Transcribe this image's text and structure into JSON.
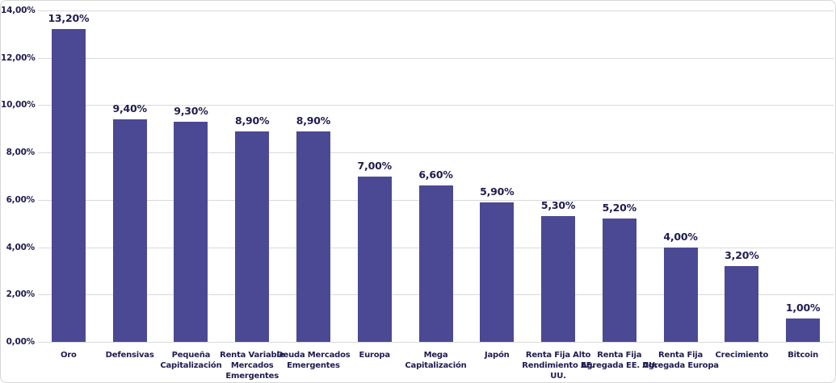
{
  "chart_data": {
    "type": "bar",
    "title": "",
    "xlabel": "",
    "ylabel": "",
    "ylim": [
      0,
      14
    ],
    "grid": true,
    "legend": false,
    "bar_color": "#4B4994",
    "label_color": "#1F1C4E",
    "gridline_color": "#D9D9D9",
    "background": "#FFFFFF",
    "categories": [
      "Oro",
      "Defensivas",
      "Pequeña Capitalización",
      "Renta Variable Mercados Emergentes",
      "Deuda Mercados Emergentes",
      "Europa",
      "Mega Capitalización",
      "Japón",
      "Renta Fija Alto Rendimiento EE. UU.",
      "Renta Fija Agregada EE. UU.",
      "Renta Fija Agregada Europa",
      "Crecimiento",
      "Bitcoin"
    ],
    "category_display": [
      "Oro",
      "Defensivas",
      "Pequeña\nCapitalización",
      "Renta Variable\nMercados\nEmergentes",
      "Deuda Mercados\nEmergentes",
      "Europa",
      "Mega\nCapitalización",
      "Japón",
      "Renta Fija Alto\nRendimiento EE.\nUU.",
      "Renta Fija\nAgregada EE. UU.",
      "Renta Fija\nAgregada Europa",
      "Crecimiento",
      "Bitcoin"
    ],
    "values": [
      13.2,
      9.4,
      9.3,
      8.9,
      8.9,
      7.0,
      6.6,
      5.9,
      5.3,
      5.2,
      4.0,
      3.2,
      1.0
    ],
    "value_labels": [
      "13,20%",
      "9,40%",
      "9,30%",
      "8,90%",
      "8,90%",
      "7,00%",
      "6,60%",
      "5,90%",
      "5,30%",
      "5,20%",
      "4,00%",
      "3,20%",
      "1,00%"
    ],
    "y_ticks": [
      {
        "value": 14,
        "label": "14,00%"
      },
      {
        "value": 12,
        "label": "12,00%"
      },
      {
        "value": 10,
        "label": "10,00%"
      },
      {
        "value": 8,
        "label": "8,00%"
      },
      {
        "value": 6,
        "label": "6,00%"
      },
      {
        "value": 4,
        "label": "4,00%"
      },
      {
        "value": 2,
        "label": "2,00%"
      },
      {
        "value": 0,
        "label": "0,00%"
      }
    ]
  }
}
